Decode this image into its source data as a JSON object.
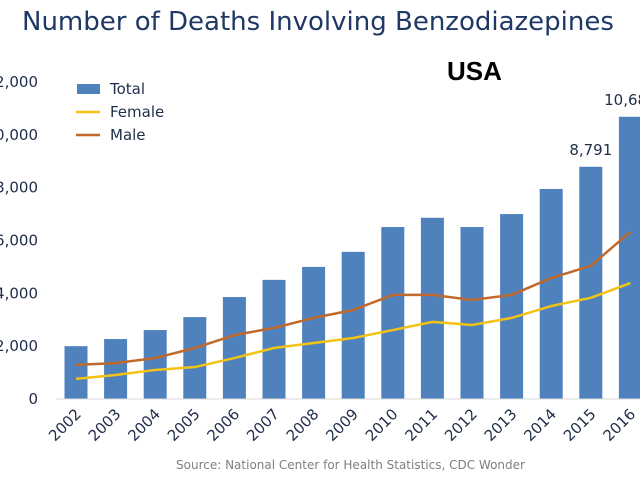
{
  "chart_data": {
    "type": "bar",
    "title": "Number of Deaths Involving Benzodiazepines",
    "annotation": "USA",
    "source": "Source: National Center for Health Statistics, CDC Wonder",
    "categories": [
      "2002",
      "2003",
      "2004",
      "2005",
      "2006",
      "2007",
      "2008",
      "2009",
      "2010",
      "2011",
      "2012",
      "2013",
      "2014",
      "2015",
      "2016"
    ],
    "series": [
      {
        "name": "Total",
        "kind": "bar",
        "color": "#4f81bd",
        "values": [
          2000,
          2270,
          2610,
          3100,
          3860,
          4510,
          5000,
          5570,
          6510,
          6860,
          6510,
          7000,
          7950,
          8791,
          10684
        ]
      },
      {
        "name": "Female",
        "kind": "line",
        "color": "#f2c314",
        "values": [
          760,
          910,
          1100,
          1210,
          1550,
          1930,
          2120,
          2310,
          2610,
          2920,
          2800,
          3070,
          3520,
          3830,
          4390
        ]
      },
      {
        "name": "Male",
        "kind": "line",
        "color": "#c0692a",
        "values": [
          1290,
          1360,
          1550,
          1930,
          2420,
          2690,
          3070,
          3370,
          3940,
          3940,
          3750,
          3940,
          4580,
          5040,
          6330
        ]
      }
    ],
    "data_labels": [
      {
        "category": "2015",
        "text": "8,791"
      },
      {
        "category": "2016",
        "text": "10,684"
      }
    ],
    "yticks": [
      "0",
      "2,000",
      "4,000",
      "6,000",
      "8,000",
      "10,000",
      "12,000"
    ],
    "ylim": [
      0,
      12000
    ],
    "grid": false,
    "legend": "top-left"
  }
}
